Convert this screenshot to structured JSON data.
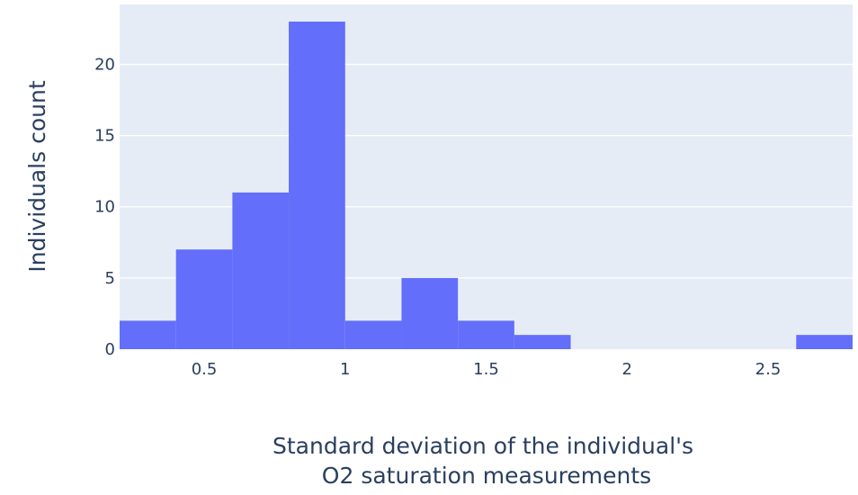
{
  "chart_data": {
    "type": "bar",
    "subtype": "histogram",
    "bin_edges": [
      0.2,
      0.4,
      0.6,
      0.8,
      1.0,
      1.2,
      1.4,
      1.6,
      1.8,
      2.0,
      2.2,
      2.4,
      2.6,
      2.8
    ],
    "values": [
      2,
      7,
      11,
      23,
      2,
      5,
      2,
      1,
      0,
      0,
      0,
      0,
      1
    ],
    "xlabel": [
      "Standard deviation of the individual's",
      "O2 saturation measurements"
    ],
    "ylabel": "Individuals count",
    "xlim": [
      0.2,
      2.8
    ],
    "ylim": [
      0,
      24.2
    ],
    "x_ticks": [
      0.5,
      1,
      1.5,
      2,
      2.5
    ],
    "x_tick_labels": [
      "0.5",
      "1",
      "1.5",
      "2",
      "2.5"
    ],
    "y_ticks": [
      0,
      5,
      10,
      15,
      20
    ],
    "y_tick_labels": [
      "0",
      "5",
      "10",
      "15",
      "20"
    ],
    "grid": true,
    "colors": {
      "bar": "#636efa",
      "plot_background": "#e5ecf6",
      "gridline": "#ffffff",
      "text": "#2a3f5f"
    }
  }
}
